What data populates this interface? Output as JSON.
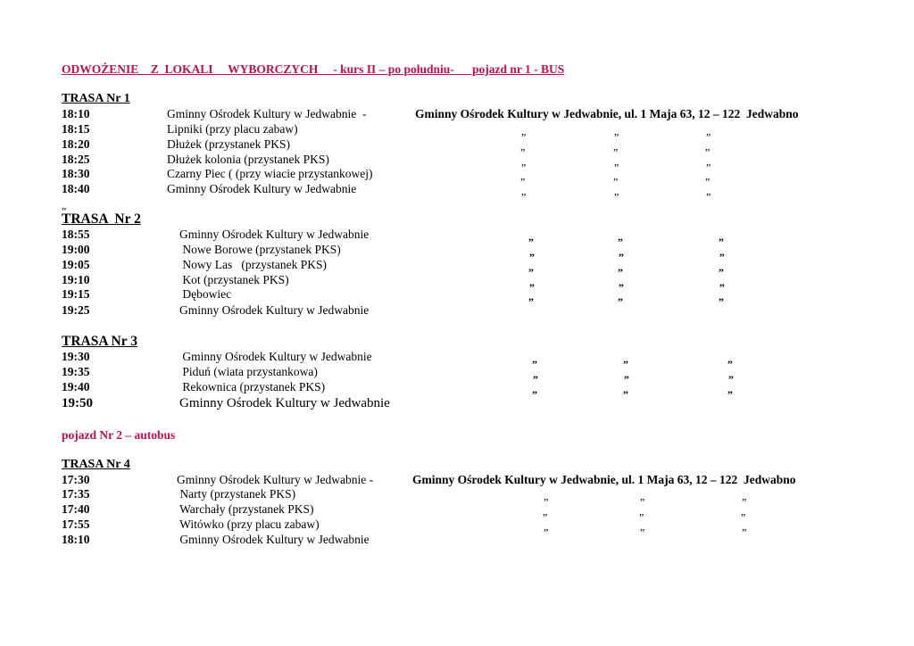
{
  "title": "ODWOŻENIE    Z  LOKALI     WYBORCZYCH     - kurs II – po południu-      pojazd nr 1 - BUS",
  "ditto_mark": "„",
  "stray_ditto": "„",
  "vehicle2": "pojazd Nr 2 – autobus",
  "routes": [
    {
      "label": "TRASA Nr 1",
      "destination": "Gminny Ośrodek Kultury w Jedwabnie, ul. 1 Maja 63, 12 – 122  Jedwabno",
      "stops": [
        {
          "time": "18:10",
          "place": "Gminny Ośrodek Kultury w Jedwabnie  -",
          "ditto": false
        },
        {
          "time": "18:15",
          "place": "Lipniki (przy placu zabaw)",
          "ditto": true
        },
        {
          "time": "18:20",
          "place": "Dłużek (przystanek PKS)",
          "ditto": true
        },
        {
          "time": "18:25",
          "place": "Dłużek kolonia (przystanek PKS)",
          "ditto": true
        },
        {
          "time": "18:30",
          "place": "Czarny Piec ( (przy wiacie przystankowej)",
          "ditto": true
        },
        {
          "time": "18:40",
          "place": "Gminny Ośrodek Kultury w Jedwabnie",
          "ditto": true
        }
      ]
    },
    {
      "label": "TRASA  Nr 2",
      "stops": [
        {
          "time": "18:55",
          "place": "Gminny Ośrodek Kultury w Jedwabnie",
          "ditto": true
        },
        {
          "time": "19:00",
          "place": " Nowe Borowe (przystanek PKS)",
          "ditto": true
        },
        {
          "time": "19:05",
          "place": " Nowy Las   (przystanek PKS)",
          "ditto": true
        },
        {
          "time": "19:10",
          "place": " Kot (przystanek PKS)",
          "ditto": true
        },
        {
          "time": "19:15",
          "place": " Dębowiec",
          "ditto": true
        },
        {
          "time": "19:25",
          "place": "Gminny Ośrodek Kultury w Jedwabnie",
          "ditto": false
        }
      ]
    },
    {
      "label": "TRASA Nr 3",
      "stops": [
        {
          "time": "19:30",
          "place": " Gminny Ośrodek Kultury w Jedwabnie",
          "ditto": true
        },
        {
          "time": "19:35",
          "place": " Piduń (wiata przystankowa)",
          "ditto": true
        },
        {
          "time": "19:40",
          "place": " Rekownica (przystanek PKS)",
          "ditto": true
        },
        {
          "time": "19:50",
          "place": "Gminny Ośrodek Kultury w Jedwabnie",
          "ditto": false
        }
      ]
    },
    {
      "label": "TRASA Nr 4",
      "destination": "Gminny Ośrodek Kultury w Jedwabnie, ul. 1 Maja 63, 12 – 122  Jedwabno",
      "stops": [
        {
          "time": "17:30",
          "place": "Gminny Ośrodek Kultury w Jedwabnie -",
          "ditto": false
        },
        {
          "time": "17:35",
          "place": " Narty (przystanek PKS)",
          "ditto": true
        },
        {
          "time": "17:40",
          "place": " Warchały (przystanek PKS)",
          "ditto": true
        },
        {
          "time": "17:55",
          "place": " Witówko (przy placu zabaw)",
          "ditto": true
        },
        {
          "time": "18:10",
          "place": " Gminny Ośrodek Kultury w Jedwabnie",
          "ditto": false
        }
      ]
    }
  ]
}
